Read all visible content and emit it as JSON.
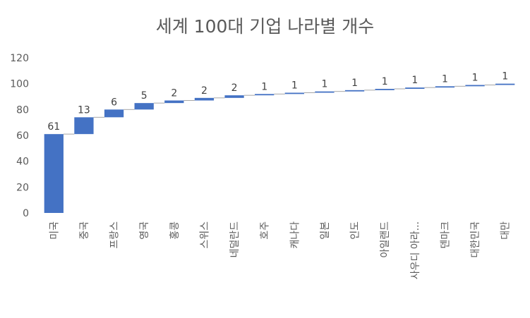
{
  "chart_data": {
    "type": "bar",
    "subtype": "waterfall",
    "title": "세계 100대 기업 나라별 개수",
    "categories": [
      "미국",
      "중국",
      "프랑스",
      "영국",
      "홍콩",
      "스위스",
      "네덜란드",
      "호주",
      "캐나다",
      "일본",
      "인도",
      "아일랜드",
      "사우디 아라...",
      "덴마크",
      "대한민국",
      "대만"
    ],
    "values": [
      61,
      13,
      6,
      5,
      2,
      2,
      2,
      1,
      1,
      1,
      1,
      1,
      1,
      1,
      1,
      1
    ],
    "ylim": [
      0,
      120
    ],
    "yticks": [
      0,
      20,
      40,
      60,
      80,
      100,
      120
    ],
    "grid": false,
    "legend": "none",
    "bar_color": "#4472C4",
    "connector_color": "#A5A5A5"
  }
}
